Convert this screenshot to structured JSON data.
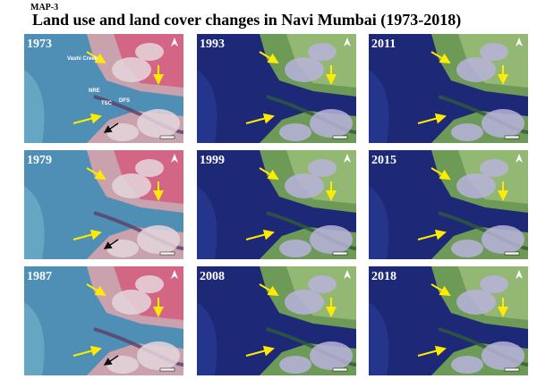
{
  "header": {
    "label": "MAP-3",
    "title": "Land use and land cover changes in Navi Mumbai (1973-2018)"
  },
  "panels": [
    {
      "year": "1973",
      "labels": [
        "Vashi Creek",
        "NRE",
        "TSC",
        "DFS"
      ]
    },
    {
      "year": "1993"
    },
    {
      "year": "2011"
    },
    {
      "year": "1979"
    },
    {
      "year": "1999"
    },
    {
      "year": "2015"
    },
    {
      "year": "1987"
    },
    {
      "year": "2008"
    },
    {
      "year": "2018"
    }
  ]
}
